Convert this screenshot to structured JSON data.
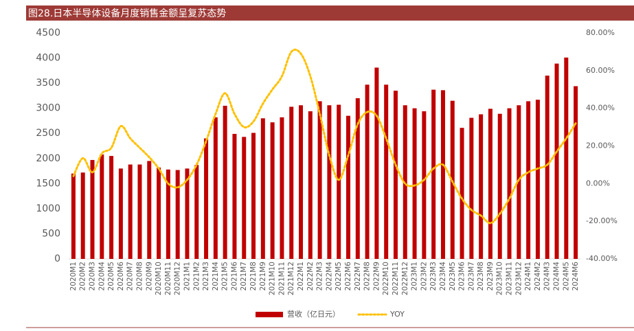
{
  "chart_data": {
    "type": "bar-line",
    "title": "图28.日本半导体设备月度销售金额呈复苏态势",
    "categories": [
      "2020M1",
      "2020M2",
      "2020M3",
      "2020M4",
      "2020M5",
      "2020M6",
      "2020M7",
      "2020M8",
      "2020M9",
      "2020M10",
      "2020M11",
      "2020M12",
      "2021M1",
      "2021M2",
      "2021M3",
      "2021M4",
      "2021M5",
      "2021M6",
      "2021M7",
      "2021M8",
      "2021M9",
      "2021M10",
      "2021M11",
      "2021M12",
      "2022M1",
      "2022M2",
      "2022M3",
      "2022M4",
      "2022M5",
      "2022M6",
      "2022M7",
      "2022M8",
      "2022M9",
      "2022M10",
      "2022M11",
      "2022M12",
      "2023M1",
      "2023M2",
      "2023M3",
      "2023M4",
      "2023M5",
      "2023M6",
      "2023M7",
      "2023M8",
      "2023M9",
      "2023M10",
      "2023M11",
      "2023M12",
      "2024M1",
      "2024M2",
      "2024M3",
      "2024M4",
      "2024M5",
      "2024M6"
    ],
    "series": [
      {
        "name": "营收（亿日元）",
        "type": "bar",
        "color": "#c00000",
        "values": [
          1700,
          1720,
          1970,
          2080,
          2050,
          1800,
          1880,
          1880,
          1950,
          1820,
          1780,
          1770,
          1800,
          1870,
          2400,
          2820,
          3050,
          2490,
          2430,
          2510,
          2800,
          2720,
          2820,
          3030,
          3060,
          2940,
          3140,
          3060,
          3070,
          2850,
          3200,
          3470,
          3810,
          3470,
          3350,
          3060,
          3000,
          2940,
          3370,
          3360,
          3150,
          2610,
          2810,
          2880,
          2990,
          2890,
          3000,
          3060,
          3140,
          3170,
          3650,
          3890,
          4010,
          3440
        ]
      },
      {
        "name": "YOY",
        "type": "line",
        "axis": "y2",
        "color": "#ffc000",
        "values": [
          4,
          13.5,
          6,
          16,
          19,
          30.5,
          24,
          19,
          14,
          8,
          0,
          -2,
          2,
          10,
          22.5,
          37,
          48,
          37,
          30,
          33,
          42.5,
          50,
          57,
          70,
          69,
          57,
          37,
          15,
          2,
          15,
          31.6,
          38,
          36,
          24,
          10,
          0,
          -1,
          2,
          8,
          10,
          1,
          -8,
          -14,
          -17,
          -21,
          -16,
          -8,
          2,
          6,
          8,
          10,
          17,
          24,
          32
        ]
      }
    ],
    "ylim": [
      0,
      4500
    ],
    "yticks": [
      0,
      500,
      1000,
      1500,
      2000,
      2500,
      3000,
      3500,
      4000,
      4500
    ],
    "y2lim": [
      -40,
      80
    ],
    "y2ticks": [
      {
        "value": -40,
        "label": "-40.00%"
      },
      {
        "value": -20,
        "label": "-20.00%"
      },
      {
        "value": 0,
        "label": "0.00%"
      },
      {
        "value": 20,
        "label": "20.00%"
      },
      {
        "value": 40,
        "label": "40.00%"
      },
      {
        "value": 60,
        "label": "60.00%"
      },
      {
        "value": 80,
        "label": "80.00%"
      }
    ],
    "grid": false
  }
}
